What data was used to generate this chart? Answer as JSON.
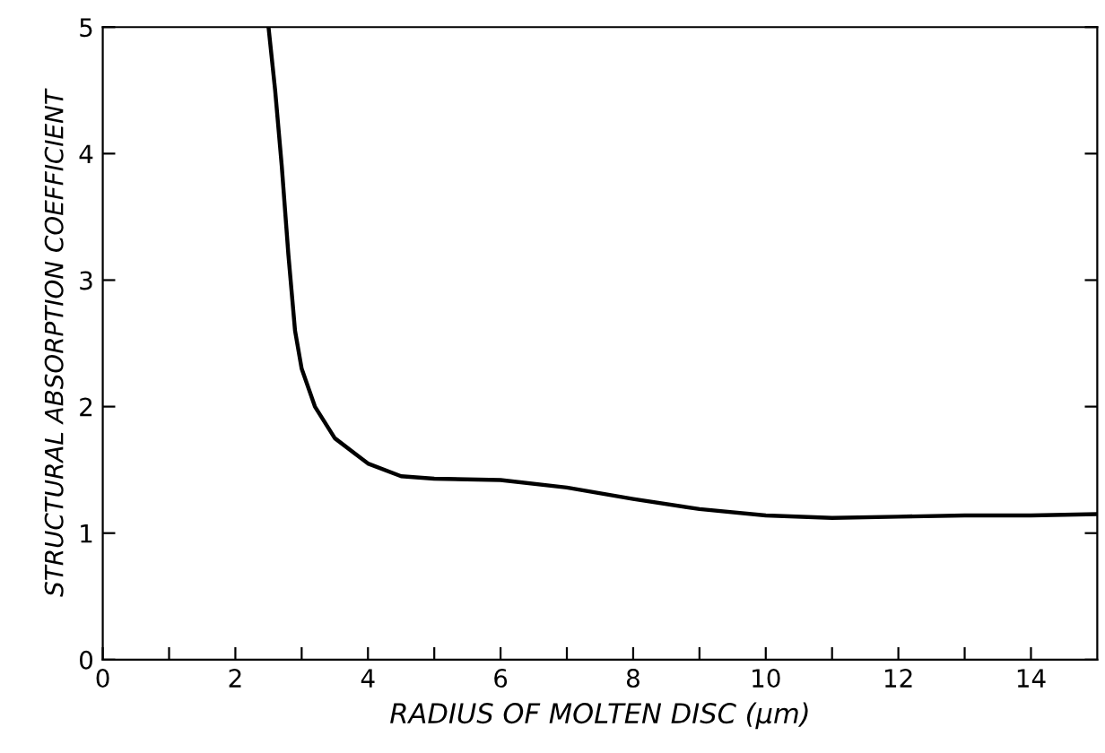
{
  "chart_data": {
    "type": "line",
    "xlabel": "RADIUS OF MOLTEN DISC (μm)",
    "ylabel": "STRUCTURAL ABSORPTION COEFFICIENT",
    "series": [
      {
        "color": "#000000",
        "x": [
          2.5,
          2.6,
          2.7,
          2.8,
          2.9,
          3.0,
          3.2,
          3.5,
          4.0,
          4.5,
          5,
          6,
          7,
          8,
          9,
          10,
          11,
          12,
          13,
          14,
          15
        ],
        "values": [
          5,
          4.5,
          3.9,
          3.2,
          2.6,
          2.3,
          2.0,
          1.75,
          1.55,
          1.45,
          1.43,
          1.42,
          1.36,
          1.27,
          1.19,
          1.14,
          1.12,
          1.13,
          1.14,
          1.14,
          1.15
        ]
      }
    ],
    "xlim": [
      0,
      15
    ],
    "ylim": [
      0,
      5
    ],
    "xticks": [
      0,
      {
        "value": 1,
        "label": null
      },
      2,
      {
        "value": 3,
        "label": null
      },
      4,
      {
        "value": 5,
        "label": null
      },
      6,
      {
        "value": 7,
        "label": null
      },
      8,
      {
        "value": 9,
        "label": null
      },
      10,
      {
        "value": 11,
        "label": null
      },
      12,
      {
        "value": 13,
        "label": null
      },
      14
    ],
    "yticks": [
      0,
      1,
      2,
      3,
      4,
      5
    ],
    "grid": false,
    "legend": false,
    "marker": "none",
    "line_style": "solid"
  }
}
